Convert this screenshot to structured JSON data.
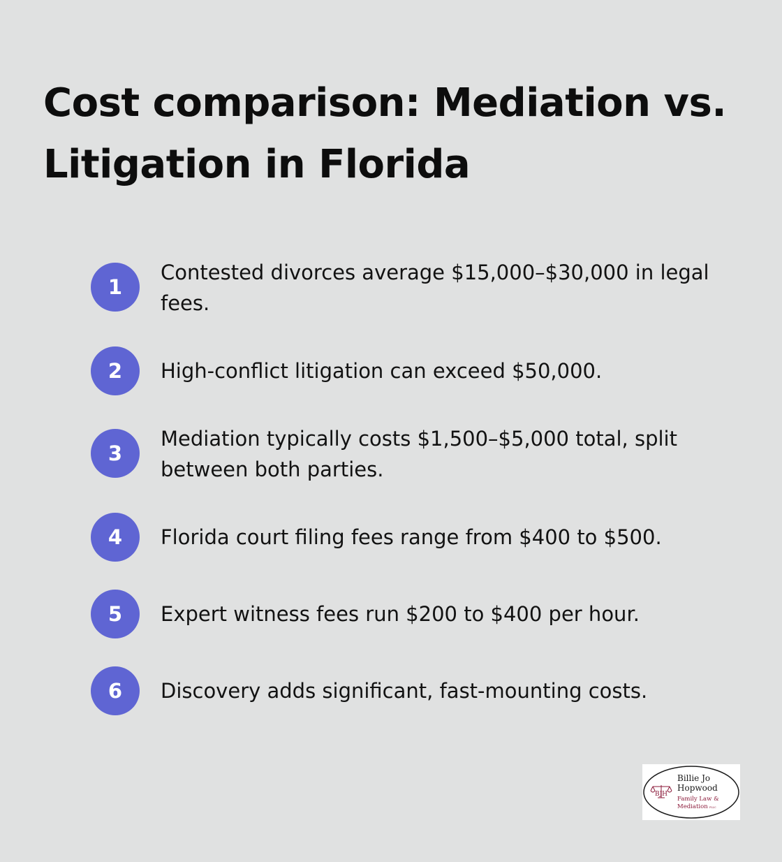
{
  "title": "Cost comparison: Mediation vs. Litigation in Florida",
  "items": [
    {
      "number": "1",
      "text": "Contested divorces average $15,000–$30,000 in legal fees."
    },
    {
      "number": "2",
      "text": "High-conflict litigation can exceed $50,000."
    },
    {
      "number": "3",
      "text": "Mediation typically costs $1,500–$5,000 total, split between both parties."
    },
    {
      "number": "4",
      "text": "Florida court filing fees range from $400 to $500."
    },
    {
      "number": "5",
      "text": "Expert witness fees run $200 to $400 per hour."
    },
    {
      "number": "6",
      "text": "Discovery adds significant, fast-mounting costs."
    }
  ],
  "logo": {
    "line1": "Billie Jo",
    "line2": "Hopwood",
    "line3": "Family Law &",
    "line4": "Mediation",
    "suffix": "PLLC",
    "initials": "BJH",
    "accent_color": "#8b1a3a"
  },
  "colors": {
    "background": "#e0e1e1",
    "badge": "#5f65d3"
  }
}
